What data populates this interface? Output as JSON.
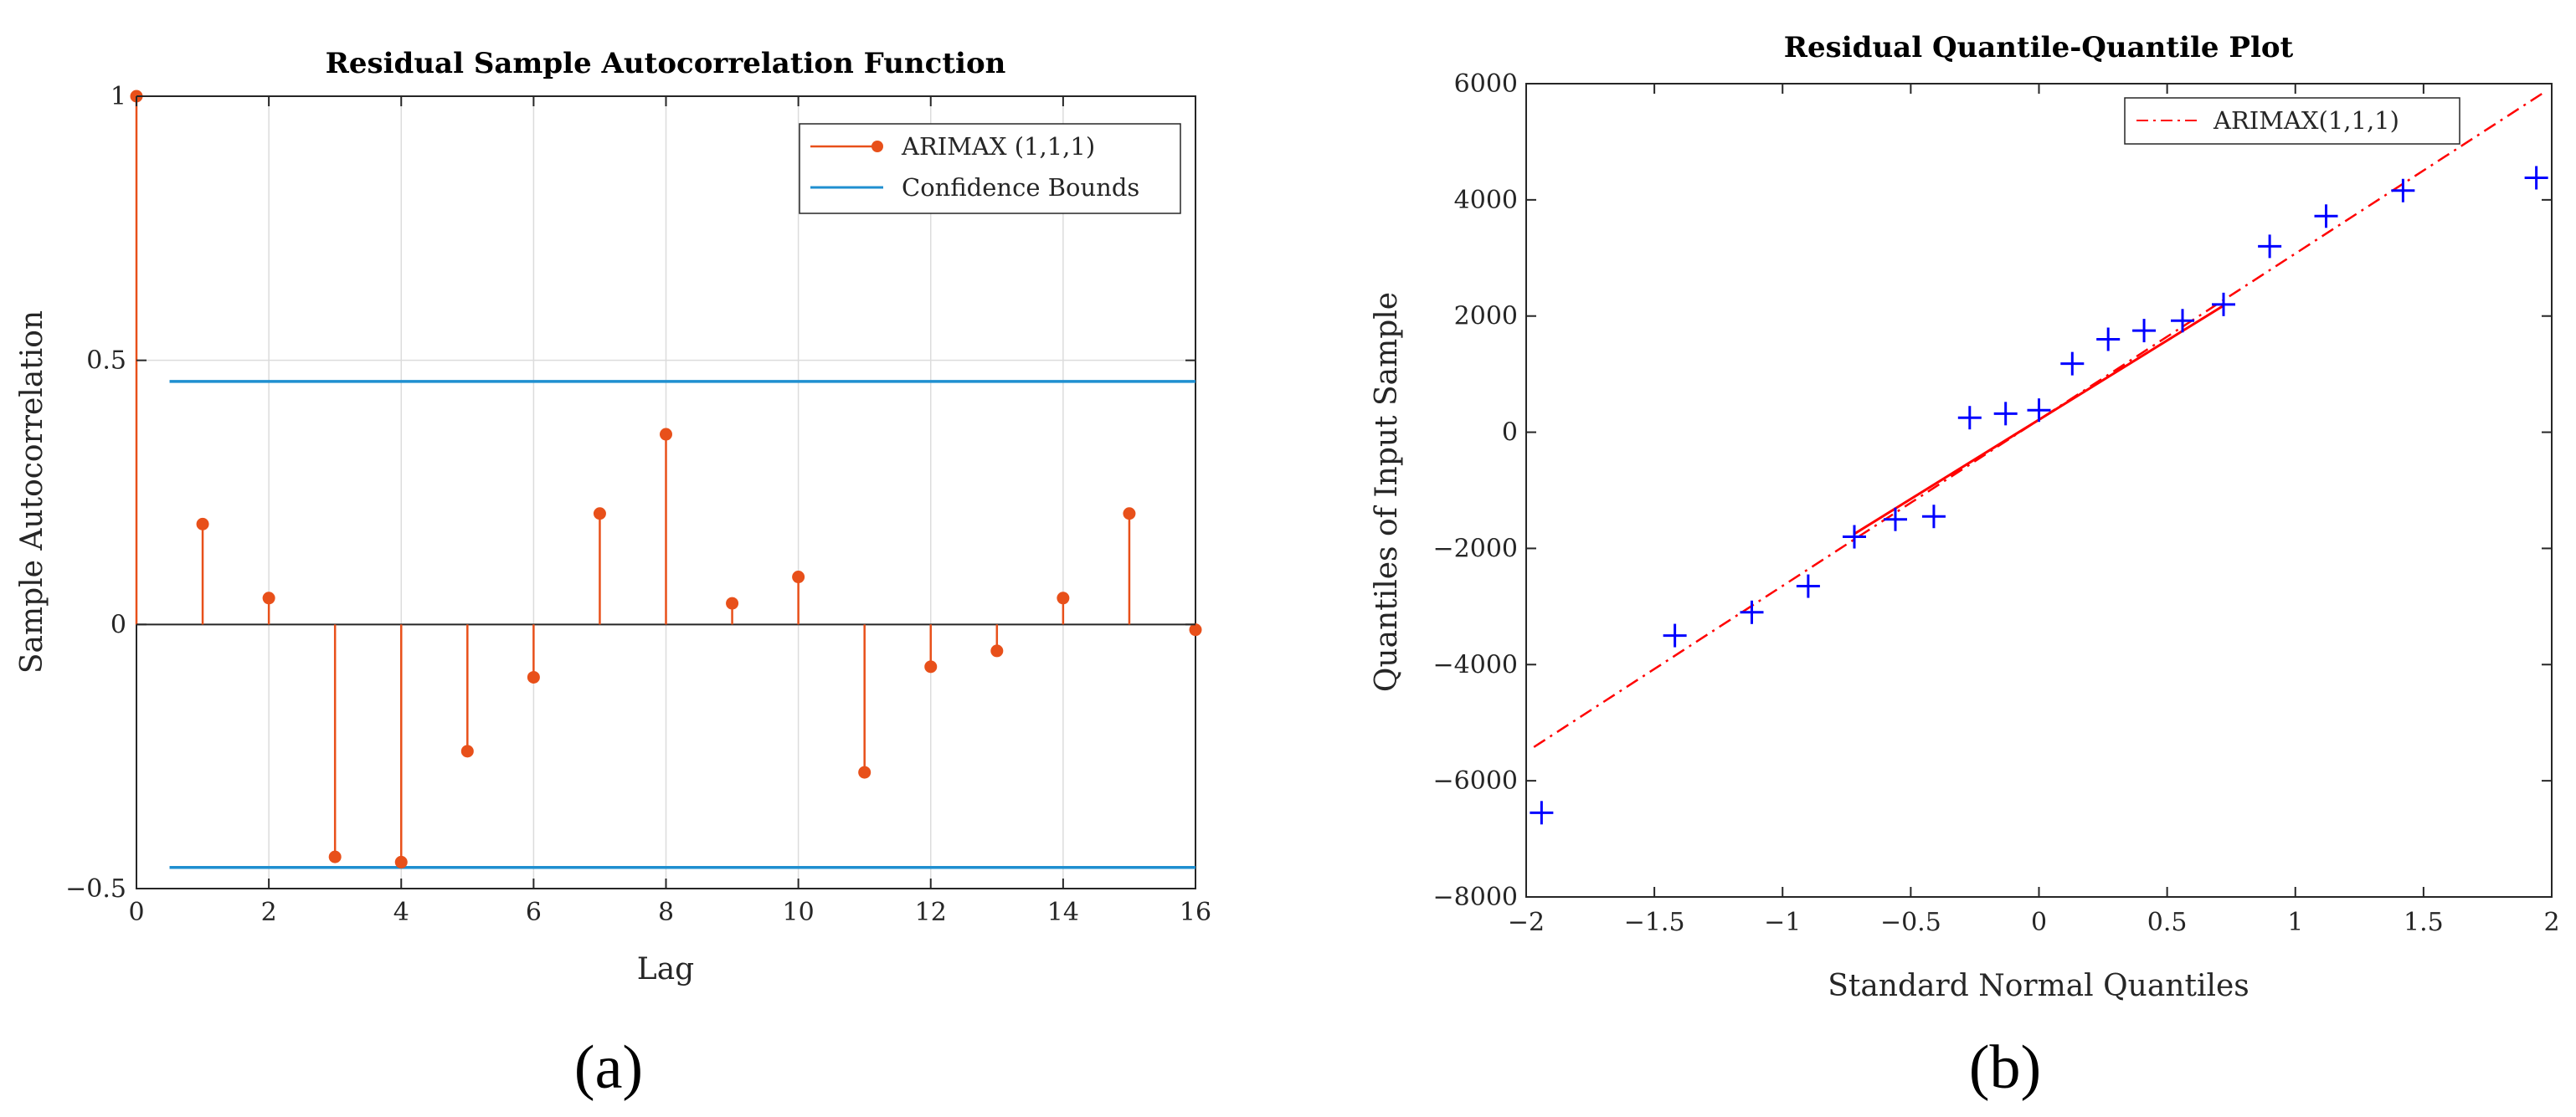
{
  "chart_data": [
    {
      "panel": "a",
      "type": "stem",
      "title": "Residual Sample Autocorrelation Function",
      "xlabel": "Lag",
      "ylabel": "Sample Autocorrelation",
      "xlim": [
        0,
        16
      ],
      "ylim": [
        -0.5,
        1
      ],
      "xticks": [
        0,
        2,
        4,
        6,
        8,
        10,
        12,
        14,
        16
      ],
      "yticks": [
        -0.5,
        0,
        0.5,
        1
      ],
      "ytick_labels": [
        "−0.5",
        "0",
        "0.5",
        "1"
      ],
      "grid": "vertical",
      "legend_position": "top-right",
      "series": [
        {
          "name": "ARIMAX (1,1,1)",
          "color": "#e8501a",
          "lags": [
            0,
            1,
            2,
            3,
            4,
            5,
            6,
            7,
            8,
            9,
            10,
            11,
            12,
            13,
            14,
            15,
            16
          ],
          "values": [
            1,
            0.19,
            0.05,
            -0.44,
            -0.45,
            -0.24,
            -0.1,
            0.21,
            0.36,
            0.04,
            0.09,
            -0.28,
            -0.08,
            -0.05,
            0.05,
            0.21,
            -0.01
          ]
        }
      ],
      "bounds": {
        "name": "Confidence Bounds",
        "color": "#1f8fd0",
        "upper": 0.46,
        "lower": -0.46,
        "x_range": [
          0.5,
          16
        ]
      }
    },
    {
      "panel": "b",
      "type": "scatter",
      "title": "Residual Quantile-Quantile Plot",
      "xlabel": "Standard Normal Quantiles",
      "ylabel": "Quantiles of Input Sample",
      "xlim": [
        -2,
        2
      ],
      "ylim": [
        -8000,
        6000
      ],
      "xticks": [
        -2,
        -1.5,
        -1,
        -0.5,
        0,
        0.5,
        1,
        1.5,
        2
      ],
      "xtick_labels": [
        "−2",
        "−1.5",
        "−1",
        "−0.5",
        "0",
        "0.5",
        "1",
        "1.5",
        "2"
      ],
      "yticks": [
        -8000,
        -6000,
        -4000,
        -2000,
        0,
        2000,
        4000,
        6000
      ],
      "ytick_labels": [
        "−8000",
        "−6000",
        "−4000",
        "−2000",
        "0",
        "2000",
        "4000",
        "6000"
      ],
      "grid": "off",
      "legend_position": "top-right",
      "points": {
        "color": "#0000ff",
        "marker": "+",
        "x": [
          -1.94,
          -1.42,
          -1.12,
          -0.9,
          -0.72,
          -0.56,
          -0.41,
          -0.27,
          -0.13,
          0,
          0.13,
          0.27,
          0.41,
          0.56,
          0.72,
          0.9,
          1.12,
          1.42,
          1.94
        ],
        "y": [
          -6550,
          -3500,
          -3100,
          -2650,
          -1800,
          -1500,
          -1450,
          250,
          320,
          380,
          1180,
          1600,
          1750,
          1920,
          2200,
          3200,
          3720,
          4160,
          4380
        ]
      },
      "fit_line": {
        "name": "ARIMAX(1,1,1)",
        "color": "#ff0000",
        "solid_segment": [
          [
            -0.72,
            -1750
          ],
          [
            0.72,
            2180
          ]
        ],
        "dashdot_segment": [
          [
            -1.97,
            -5420
          ],
          [
            1.97,
            5850
          ]
        ]
      }
    }
  ],
  "panel_labels": {
    "a": "(a)",
    "b": "(b)"
  }
}
